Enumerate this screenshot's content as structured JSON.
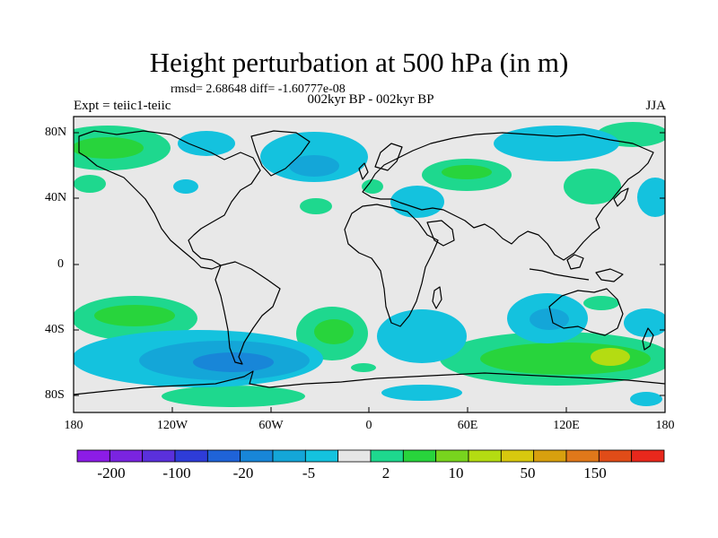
{
  "title": "Height perturbation at 500 hPa (in m)",
  "stats": "rmsd= 2.68648 diff= -1.60777e-08",
  "subtitle": "002kyr BP - 002kyr BP",
  "experiment": "Expt = teiic1-teiic",
  "season": "JJA",
  "map": {
    "projection": "cylindrical equidistant",
    "lon_range": [
      -180,
      180
    ],
    "lat_range": [
      -90,
      90
    ],
    "lat_ticks": [
      "80N",
      "40N",
      "0",
      "40S",
      "80S"
    ],
    "lon_ticks": [
      "180",
      "120W",
      "60W",
      "0",
      "60E",
      "120E",
      "180"
    ],
    "background_color": "#e8e8e8",
    "coastline_color": "#000000"
  },
  "colorbar": {
    "labels": [
      "-200",
      "-100",
      "-20",
      "-5",
      "2",
      "10",
      "50",
      "150"
    ],
    "colors": [
      "#8c1ce6",
      "#7a24e0",
      "#5a30dc",
      "#2e3cd8",
      "#1f63d8",
      "#1886d8",
      "#14a6d8",
      "#14c2de",
      "#e6e6e6",
      "#1ed88e",
      "#28d43c",
      "#78d41e",
      "#b4dc12",
      "#d8c80e",
      "#d8a00e",
      "#e0781a",
      "#e04c18",
      "#e8281c"
    ]
  }
}
